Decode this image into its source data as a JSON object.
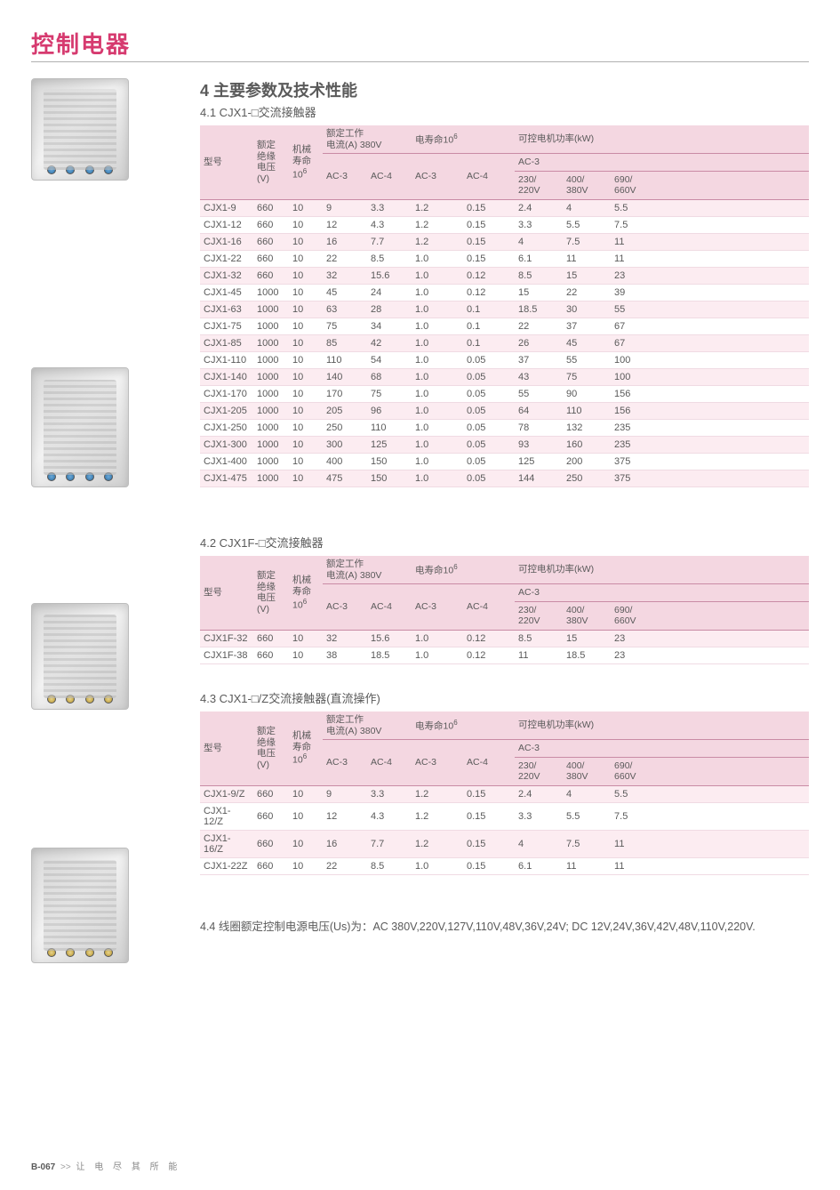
{
  "page_title": "控制电器",
  "footer": {
    "page_no": "B-067",
    "arrow": ">>",
    "slogan": "让 电 尽 其 所 能"
  },
  "section_heading": "4 主要参数及技术性能",
  "headers": {
    "model": "型号",
    "ins_v_l1": "额定",
    "ins_v_l2": "绝缘",
    "ins_v_l3": "电压",
    "ins_v_l4": "(V)",
    "mech_l1": "机械",
    "mech_l2": "寿命",
    "mech_l3_pre": "10",
    "mech_l3_sup": "6",
    "rated_cur_l1": "额定工作",
    "rated_cur_l2": "电流(A) 380V",
    "elife_pre": "电寿命10",
    "elife_sup": "6",
    "power_top": "可控电机功率(kW)",
    "ac3_ac4_a": "AC-3",
    "ac3_ac4_b": "AC-4",
    "elife_ac3": "AC-3",
    "elife_ac4": "AC-4",
    "pow_group": "AC-3",
    "pow_230_l1": "230/",
    "pow_230_l2": "220V",
    "pow_400_l1": "400/",
    "pow_400_l2": "380V",
    "pow_690_l1": "690/",
    "pow_690_l2": "660V"
  },
  "t41": {
    "subtitle": "4.1 CJX1-□交流接触器",
    "rows": [
      [
        "CJX1-9",
        "660",
        "10",
        "9",
        "3.3",
        "1.2",
        "0.15",
        "2.4",
        "4",
        "5.5"
      ],
      [
        "CJX1-12",
        "660",
        "10",
        "12",
        "4.3",
        "1.2",
        "0.15",
        "3.3",
        "5.5",
        "7.5"
      ],
      [
        "CJX1-16",
        "660",
        "10",
        "16",
        "7.7",
        "1.2",
        "0.15",
        "4",
        "7.5",
        "11"
      ],
      [
        "CJX1-22",
        "660",
        "10",
        "22",
        "8.5",
        "1.0",
        "0.15",
        "6.1",
        "11",
        "11"
      ],
      [
        "CJX1-32",
        "660",
        "10",
        "32",
        "15.6",
        "1.0",
        "0.12",
        "8.5",
        "15",
        "23"
      ],
      [
        "CJX1-45",
        "1000",
        "10",
        "45",
        "24",
        "1.0",
        "0.12",
        "15",
        "22",
        "39"
      ],
      [
        "CJX1-63",
        "1000",
        "10",
        "63",
        "28",
        "1.0",
        "0.1",
        "18.5",
        "30",
        "55"
      ],
      [
        "CJX1-75",
        "1000",
        "10",
        "75",
        "34",
        "1.0",
        "0.1",
        "22",
        "37",
        "67"
      ],
      [
        "CJX1-85",
        "1000",
        "10",
        "85",
        "42",
        "1.0",
        "0.1",
        "26",
        "45",
        "67"
      ],
      [
        "CJX1-110",
        "1000",
        "10",
        "110",
        "54",
        "1.0",
        "0.05",
        "37",
        "55",
        "100"
      ],
      [
        "CJX1-140",
        "1000",
        "10",
        "140",
        "68",
        "1.0",
        "0.05",
        "43",
        "75",
        "100"
      ],
      [
        "CJX1-170",
        "1000",
        "10",
        "170",
        "75",
        "1.0",
        "0.05",
        "55",
        "90",
        "156"
      ],
      [
        "CJX1-205",
        "1000",
        "10",
        "205",
        "96",
        "1.0",
        "0.05",
        "64",
        "110",
        "156"
      ],
      [
        "CJX1-250",
        "1000",
        "10",
        "250",
        "110",
        "1.0",
        "0.05",
        "78",
        "132",
        "235"
      ],
      [
        "CJX1-300",
        "1000",
        "10",
        "300",
        "125",
        "1.0",
        "0.05",
        "93",
        "160",
        "235"
      ],
      [
        "CJX1-400",
        "1000",
        "10",
        "400",
        "150",
        "1.0",
        "0.05",
        "125",
        "200",
        "375"
      ],
      [
        "CJX1-475",
        "1000",
        "10",
        "475",
        "150",
        "1.0",
        "0.05",
        "144",
        "250",
        "375"
      ]
    ]
  },
  "t42": {
    "subtitle": "4.2 CJX1F-□交流接触器",
    "rows": [
      [
        "CJX1F-32",
        "660",
        "10",
        "32",
        "15.6",
        "1.0",
        "0.12",
        "8.5",
        "15",
        "23"
      ],
      [
        "CJX1F-38",
        "660",
        "10",
        "38",
        "18.5",
        "1.0",
        "0.12",
        "11",
        "18.5",
        "23"
      ]
    ]
  },
  "t43": {
    "subtitle": "4.3 CJX1-□/Z交流接触器(直流操作)",
    "rows": [
      [
        "CJX1-9/Z",
        "660",
        "10",
        "9",
        "3.3",
        "1.2",
        "0.15",
        "2.4",
        "4",
        "5.5"
      ],
      [
        "CJX1-12/Z",
        "660",
        "10",
        "12",
        "4.3",
        "1.2",
        "0.15",
        "3.3",
        "5.5",
        "7.5"
      ],
      [
        "CJX1-16/Z",
        "660",
        "10",
        "16",
        "7.7",
        "1.2",
        "0.15",
        "4",
        "7.5",
        "11"
      ],
      [
        "CJX1-22Z",
        "660",
        "10",
        "22",
        "8.5",
        "1.0",
        "0.15",
        "6.1",
        "11",
        "11"
      ]
    ]
  },
  "t44": {
    "text": "4.4 线圈额定控制电源电压(Us)为：AC 380V,220V,127V,110V,48V,36V,24V; DC 12V,24V,36V,42V,48V,110V,220V."
  },
  "style": {
    "header_bg": "#f4d7e1",
    "row_odd_bg": "#fcecf1",
    "row_even_bg": "#ffffff",
    "border_color": "#c98ba5",
    "title_color": "#d63a6f",
    "text_color": "#5a5a5a",
    "font_size_table": 11,
    "font_size_title": 26
  }
}
